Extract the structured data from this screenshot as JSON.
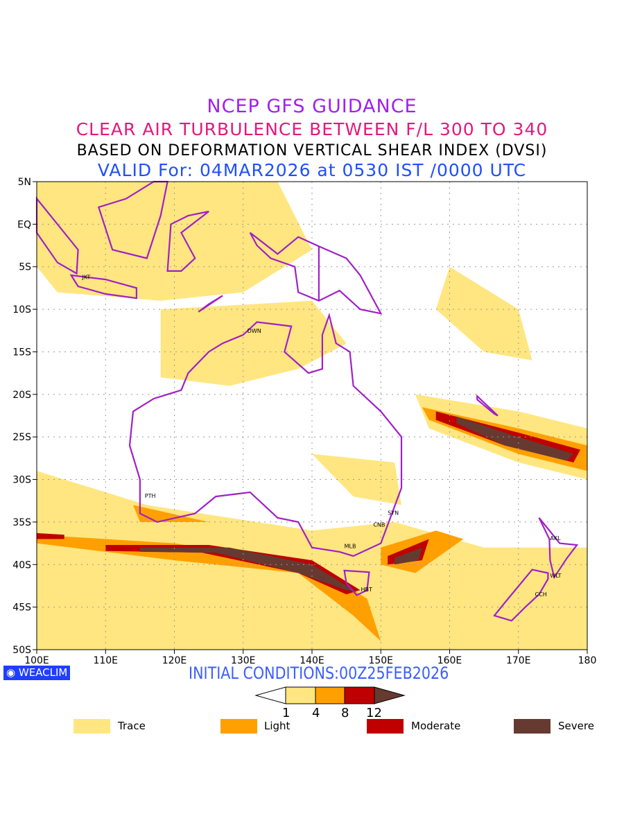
{
  "title": {
    "line1": "NCEP GFS GUIDANCE",
    "line2": "CLEAR AIR TURBULENCE BETWEEN F/L 300 TO 340",
    "line3": "BASED ON DEFORMATION VERTICAL SHEAR INDEX (DVSI)",
    "line4": "VALID For: 04MAR2026 at 0530 IST /0000 UTC"
  },
  "map": {
    "lat_labels": [
      "5N",
      "EQ",
      "5S",
      "10S",
      "15S",
      "20S",
      "25S",
      "30S",
      "35S",
      "40S",
      "45S",
      "50S"
    ],
    "lon_labels": [
      "100E",
      "110E",
      "120E",
      "130E",
      "140E",
      "150E",
      "160E",
      "170E",
      "180"
    ],
    "cities": [
      "JKT",
      "DWN",
      "PTH",
      "SYN",
      "CNB",
      "MLB",
      "HBT",
      "AKL",
      "WLT",
      "CCH"
    ],
    "colors": {
      "trace": "#ffe680",
      "light": "#ffa000",
      "moderate": "#c00000",
      "severe": "#663a30",
      "coast": "#a020c8"
    }
  },
  "footer": {
    "logo": "WEACLIM",
    "initial_conditions": "INITIAL CONDITIONS:00Z25FEB2026"
  },
  "colorbar": {
    "thresholds": [
      "1",
      "4",
      "8",
      "12"
    ]
  },
  "legend": [
    {
      "label": "Trace",
      "color": "#ffe680"
    },
    {
      "label": "Light",
      "color": "#ffa000"
    },
    {
      "label": "Moderate",
      "color": "#c00000"
    },
    {
      "label": "Severe",
      "color": "#663a30"
    }
  ]
}
